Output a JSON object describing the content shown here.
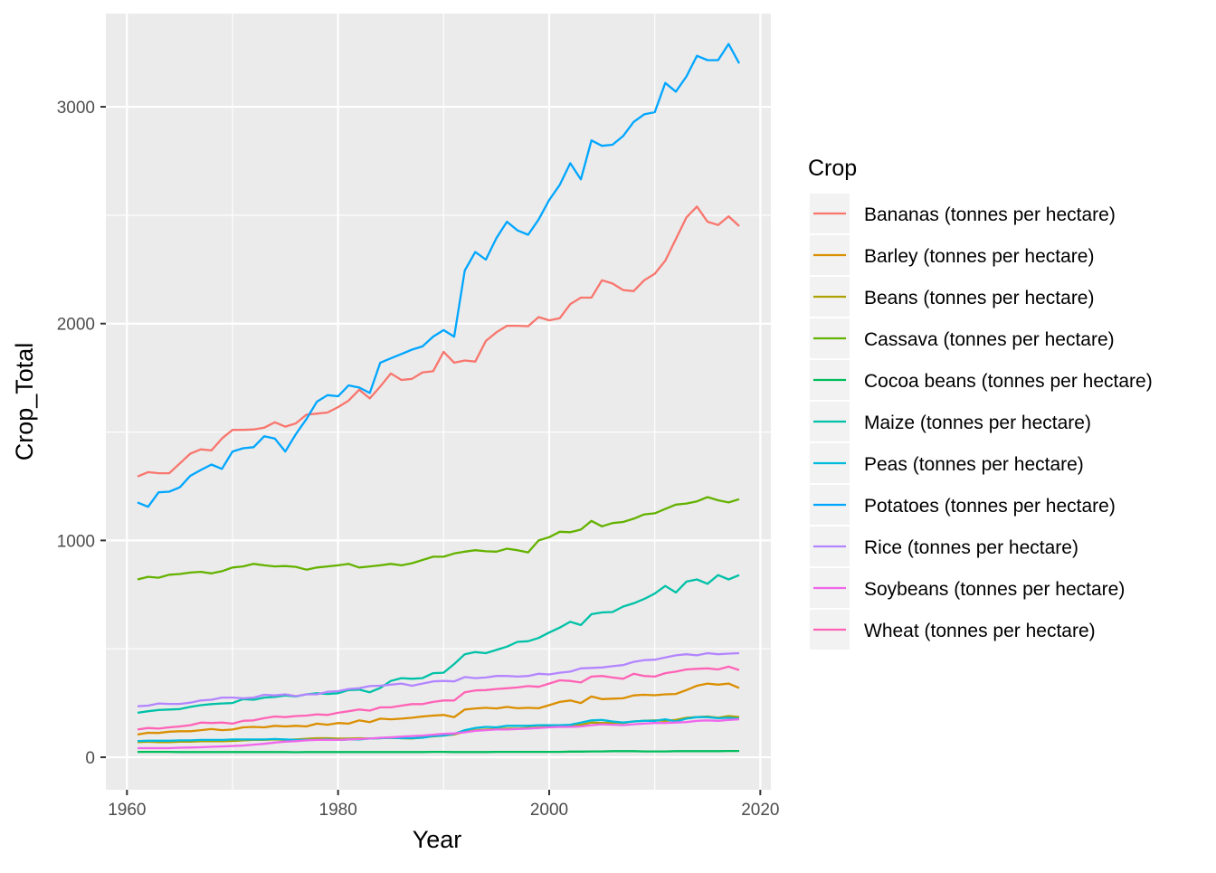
{
  "chart_data": {
    "type": "line",
    "title": "",
    "xlabel": "Year",
    "ylabel": "Crop_Total",
    "xlim": [
      1958,
      2021
    ],
    "ylim": [
      -150,
      3430
    ],
    "x_ticks": [
      1960,
      1980,
      2000,
      2020
    ],
    "y_ticks": [
      0,
      1000,
      2000,
      3000
    ],
    "grid": true,
    "background": "#EBEBEB",
    "legend": {
      "title": "Crop",
      "position": "right"
    },
    "x": [
      1961,
      1962,
      1963,
      1964,
      1965,
      1966,
      1967,
      1968,
      1969,
      1970,
      1971,
      1972,
      1973,
      1974,
      1975,
      1976,
      1977,
      1978,
      1979,
      1980,
      1981,
      1982,
      1983,
      1984,
      1985,
      1986,
      1987,
      1988,
      1989,
      1990,
      1991,
      1992,
      1993,
      1994,
      1995,
      1996,
      1997,
      1998,
      1999,
      2000,
      2001,
      2002,
      2003,
      2004,
      2005,
      2006,
      2007,
      2008,
      2009,
      2010,
      2011,
      2012,
      2013,
      2014,
      2015,
      2016,
      2017,
      2018
    ],
    "series": [
      {
        "name": "Bananas (tonnes per hectare)",
        "color": "#F8766D",
        "values": [
          1295,
          1315,
          1310,
          1310,
          1355,
          1400,
          1420,
          1415,
          1470,
          1510,
          1510,
          1512,
          1520,
          1545,
          1525,
          1540,
          1580,
          1585,
          1590,
          1615,
          1645,
          1695,
          1655,
          1710,
          1770,
          1740,
          1745,
          1775,
          1780,
          1870,
          1820,
          1830,
          1825,
          1920,
          1960,
          1990,
          1990,
          1988,
          2030,
          2015,
          2025,
          2090,
          2120,
          2120,
          2200,
          2185,
          2155,
          2150,
          2200,
          2230,
          2290,
          2390,
          2490,
          2540,
          2470,
          2455,
          2495,
          2450
        ]
      },
      {
        "name": "Barley (tonnes per hectare)",
        "color": "#DB8E00",
        "values": [
          105,
          113,
          112,
          118,
          120,
          120,
          125,
          130,
          125,
          128,
          138,
          140,
          138,
          145,
          142,
          145,
          142,
          155,
          150,
          158,
          155,
          170,
          162,
          178,
          175,
          178,
          182,
          188,
          192,
          195,
          185,
          220,
          225,
          228,
          225,
          232,
          226,
          228,
          226,
          240,
          255,
          262,
          250,
          280,
          268,
          270,
          272,
          285,
          288,
          286,
          290,
          292,
          310,
          330,
          340,
          335,
          340,
          320
        ]
      },
      {
        "name": "Beans (tonnes per hectare)",
        "color": "#AEA200",
        "values": [
          70,
          72,
          70,
          70,
          72,
          72,
          74,
          74,
          74,
          75,
          78,
          80,
          80,
          82,
          80,
          82,
          85,
          88,
          88,
          86,
          86,
          88,
          86,
          88,
          90,
          88,
          86,
          92,
          96,
          100,
          105,
          118,
          125,
          128,
          130,
          132,
          132,
          135,
          138,
          142,
          146,
          145,
          150,
          160,
          158,
          160,
          158,
          165,
          168,
          170,
          168,
          172,
          182,
          185,
          188,
          182,
          190,
          185
        ]
      },
      {
        "name": "Cassava (tonnes per hectare)",
        "color": "#64B200",
        "values": [
          820,
          832,
          828,
          842,
          845,
          852,
          855,
          848,
          858,
          875,
          880,
          892,
          885,
          880,
          882,
          878,
          865,
          875,
          880,
          885,
          892,
          875,
          880,
          885,
          892,
          885,
          895,
          910,
          925,
          925,
          940,
          948,
          955,
          950,
          948,
          962,
          955,
          945,
          1000,
          1015,
          1040,
          1038,
          1050,
          1090,
          1065,
          1080,
          1085,
          1100,
          1120,
          1125,
          1145,
          1165,
          1170,
          1180,
          1200,
          1185,
          1175,
          1190
        ]
      },
      {
        "name": "Cocoa beans (tonnes per hectare)",
        "color": "#00BD5C",
        "values": [
          25,
          25,
          25,
          25,
          24,
          24,
          24,
          24,
          24,
          24,
          24,
          24,
          24,
          24,
          24,
          23,
          24,
          24,
          24,
          24,
          24,
          24,
          24,
          24,
          24,
          24,
          24,
          24,
          25,
          25,
          24,
          24,
          24,
          24,
          25,
          25,
          25,
          25,
          25,
          25,
          25,
          26,
          26,
          27,
          27,
          28,
          28,
          28,
          27,
          27,
          27,
          28,
          28,
          28,
          28,
          28,
          29,
          29
        ]
      },
      {
        "name": "Maize (tonnes per hectare)",
        "color": "#00C1A7",
        "values": [
          205,
          212,
          218,
          220,
          222,
          232,
          240,
          245,
          248,
          250,
          268,
          265,
          275,
          278,
          285,
          280,
          290,
          295,
          292,
          295,
          310,
          312,
          300,
          320,
          352,
          365,
          362,
          365,
          388,
          390,
          430,
          475,
          485,
          480,
          495,
          510,
          532,
          535,
          550,
          575,
          598,
          625,
          610,
          660,
          668,
          670,
          695,
          710,
          730,
          755,
          790,
          760,
          810,
          820,
          800,
          840,
          820,
          840
        ]
      },
      {
        "name": "Peas (tonnes per hectare)",
        "color": "#00BADE",
        "values": [
          75,
          76,
          76,
          76,
          78,
          78,
          80,
          80,
          80,
          82,
          82,
          82,
          82,
          84,
          82,
          80,
          80,
          80,
          82,
          80,
          82,
          82,
          86,
          88,
          90,
          88,
          88,
          90,
          98,
          100,
          108,
          125,
          135,
          140,
          138,
          145,
          145,
          145,
          148,
          148,
          148,
          150,
          160,
          170,
          172,
          165,
          160,
          165,
          168,
          168,
          175,
          165,
          178,
          185,
          185,
          180,
          182,
          178
        ]
      },
      {
        "name": "Potatoes (tonnes per hectare)",
        "color": "#00A6FF",
        "values": [
          1175,
          1155,
          1222,
          1225,
          1245,
          1298,
          1325,
          1350,
          1330,
          1410,
          1425,
          1430,
          1480,
          1470,
          1410,
          1490,
          1560,
          1640,
          1670,
          1665,
          1715,
          1705,
          1680,
          1820,
          1840,
          1860,
          1880,
          1895,
          1940,
          1970,
          1940,
          2245,
          2330,
          2295,
          2395,
          2470,
          2430,
          2410,
          2480,
          2570,
          2640,
          2740,
          2665,
          2845,
          2820,
          2825,
          2865,
          2930,
          2965,
          2975,
          3110,
          3070,
          3140,
          3235,
          3215,
          3215,
          3290,
          3200
        ]
      },
      {
        "name": "Rice (tonnes per hectare)",
        "color": "#B385FF",
        "values": [
          235,
          238,
          248,
          246,
          246,
          252,
          262,
          265,
          275,
          275,
          272,
          275,
          288,
          285,
          290,
          282,
          290,
          290,
          302,
          305,
          315,
          318,
          328,
          330,
          335,
          340,
          330,
          340,
          350,
          352,
          350,
          370,
          365,
          368,
          375,
          375,
          372,
          375,
          385,
          382,
          390,
          395,
          410,
          412,
          414,
          420,
          425,
          440,
          448,
          450,
          460,
          470,
          475,
          470,
          480,
          475,
          478,
          480
        ]
      },
      {
        "name": "Soybeans (tonnes per hectare)",
        "color": "#EF67EB",
        "values": [
          42,
          42,
          42,
          42,
          44,
          45,
          46,
          48,
          50,
          52,
          54,
          58,
          62,
          68,
          72,
          74,
          78,
          80,
          80,
          80,
          82,
          84,
          86,
          90,
          92,
          95,
          98,
          100,
          104,
          108,
          110,
          115,
          122,
          125,
          128,
          128,
          130,
          132,
          135,
          138,
          140,
          140,
          142,
          148,
          152,
          150,
          148,
          152,
          155,
          158,
          158,
          160,
          162,
          168,
          170,
          168,
          172,
          175
        ]
      },
      {
        "name": "Wheat (tonnes per hectare)",
        "color": "#FF63B6",
        "values": [
          128,
          135,
          132,
          138,
          142,
          148,
          160,
          158,
          160,
          155,
          168,
          170,
          180,
          188,
          185,
          190,
          192,
          198,
          195,
          205,
          212,
          220,
          215,
          230,
          230,
          238,
          245,
          245,
          255,
          262,
          262,
          300,
          308,
          310,
          315,
          318,
          322,
          328,
          325,
          340,
          355,
          352,
          345,
          372,
          375,
          368,
          362,
          385,
          375,
          372,
          388,
          395,
          405,
          408,
          410,
          405,
          418,
          402
        ]
      }
    ]
  }
}
